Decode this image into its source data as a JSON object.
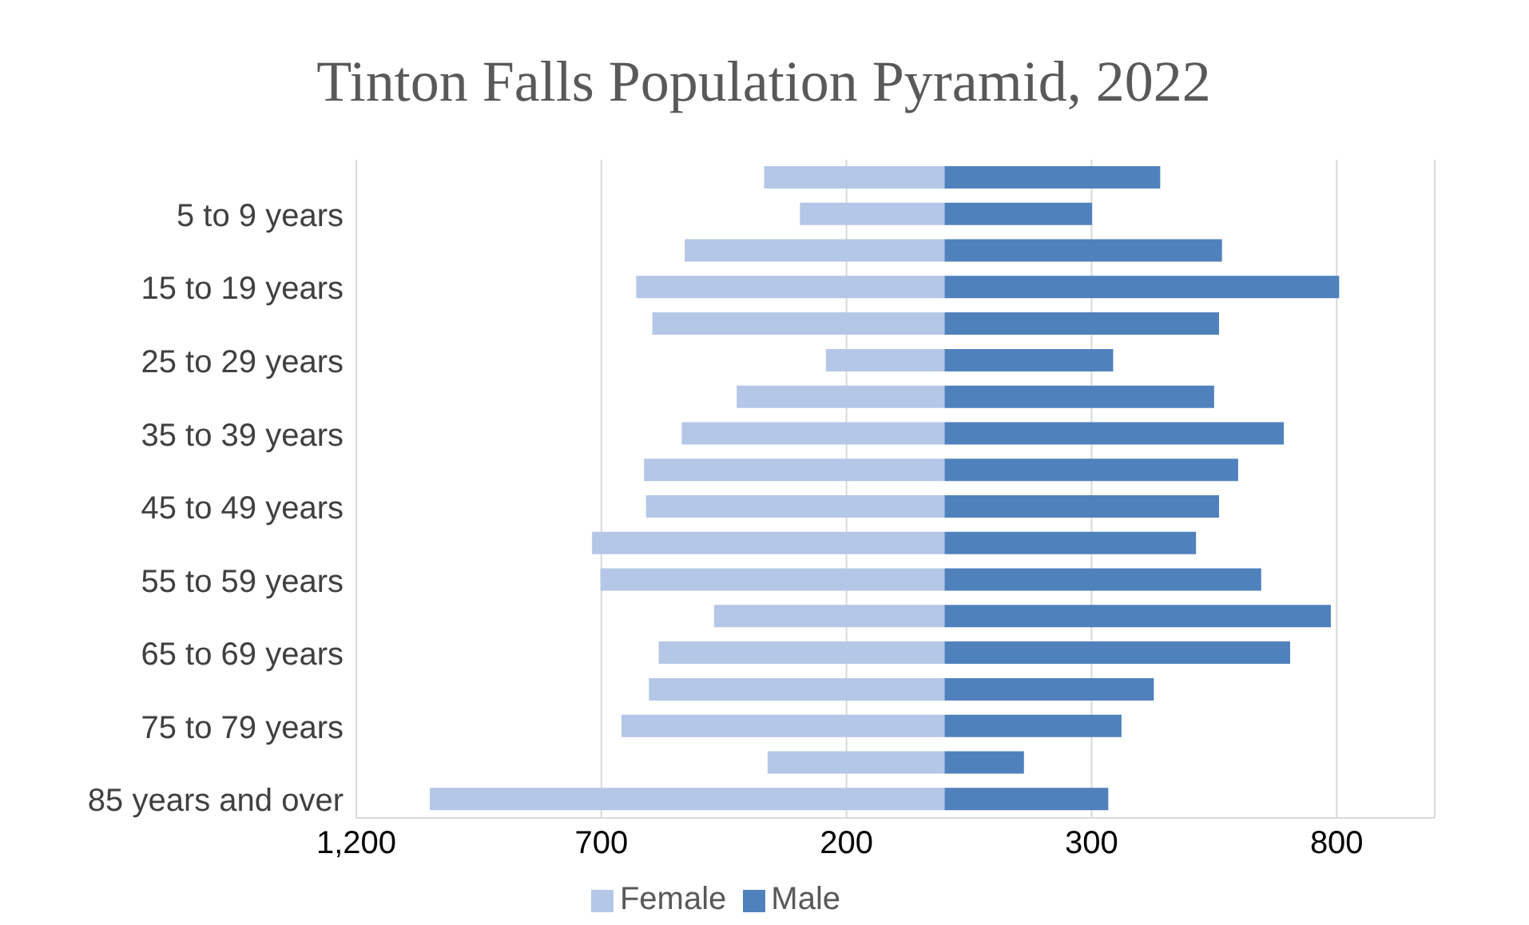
{
  "chart_data": {
    "type": "bar",
    "title": "Tinton Falls Population Pyramid, 2022",
    "orientation": "horizontal",
    "stacked": true,
    "categories": [
      null,
      "5 to 9 years",
      null,
      "15 to 19  years",
      null,
      "25 to 29 years",
      null,
      "35 to 39 years",
      null,
      "45 to 49 years",
      null,
      "55 to 59 years",
      null,
      "65 to 69 years",
      null,
      "75 to 79 years",
      null,
      "85 years and over"
    ],
    "series": [
      {
        "name": "Female",
        "color": "#b4c7e7",
        "values": [
          -368,
          -295,
          -530,
          -629,
          -596,
          -242,
          -424,
          -536,
          -613,
          -609,
          -719,
          -702,
          -470,
          -583,
          -603,
          -659,
          -361,
          -1050
        ]
      },
      {
        "name": "Male",
        "color": "#4f81bd",
        "values": [
          440,
          301,
          566,
          805,
          560,
          344,
          550,
          692,
          599,
          560,
          513,
          646,
          788,
          705,
          427,
          361,
          162,
          334
        ]
      }
    ],
    "xlim": [
      -1200,
      1000
    ],
    "xticks": [
      {
        "value": -1200,
        "label": "1,200"
      },
      {
        "value": -700,
        "label": "700"
      },
      {
        "value": -200,
        "label": "200"
      },
      300,
      800
    ],
    "grid": "x",
    "legend": "bottom"
  }
}
